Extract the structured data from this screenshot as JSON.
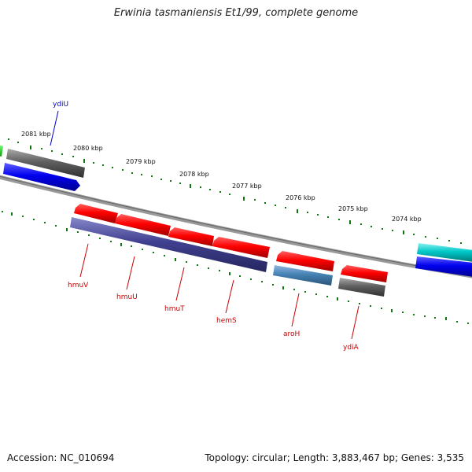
{
  "title": "Erwinia tasmaniensis Et1/99, complete genome",
  "footer": {
    "accession": "Accession: NC_010694",
    "summary": "Topology: circular; Length: 3,883,467 bp; Genes: 3,535"
  },
  "scale_labels": [
    "2081 kbp",
    "2080 kbp",
    "2079 kbp",
    "2078 kbp",
    "2077 kbp",
    "2076 kbp",
    "2075 kbp",
    "2074 kbp"
  ],
  "gene_labels": {
    "ydiU": "ydiU",
    "hmuV": "hmuV",
    "hmuU": "hmuU",
    "hmuT": "hmuT",
    "hemS": "hemS",
    "aroH": "aroH",
    "ydiA": "ydiA"
  },
  "colors": {
    "forward_gene": "#0000ee",
    "reverse_gene": "#ee0000",
    "backbone": "#888888",
    "tick": "#117711",
    "label_forward": "#0000cc",
    "label_reverse": "#cc0000"
  }
}
